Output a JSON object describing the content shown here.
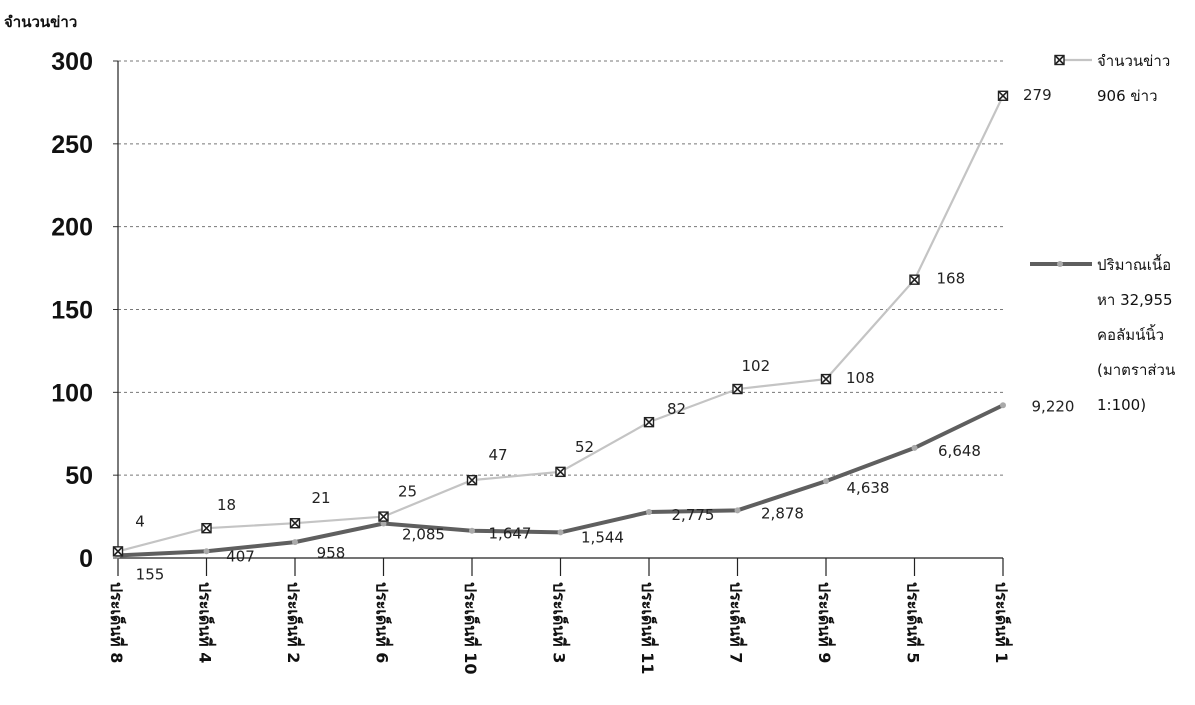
{
  "chart_data": {
    "type": "line",
    "ylabel": "จำนวนข่าว",
    "ylim": [
      0,
      300
    ],
    "yticks": [
      0,
      50,
      100,
      150,
      200,
      250,
      300
    ],
    "grid": "horizontal dashed",
    "legend_position": "right",
    "categories": [
      "ประเด็นที่ 8",
      "ประเด็นที่ 4",
      "ประเด็นที่ 2",
      "ประเด็นที่ 6",
      "ประเด็นที่ 10",
      "ประเด็นที่ 3",
      "ประเด็นที่ 11",
      "ประเด็นที่ 7",
      "ประเด็นที่ 9",
      "ประเด็นที่ 5",
      "ประเด็นที่ 1"
    ],
    "series": [
      {
        "name": "จำนวนข่าว 906 ข่าว",
        "legend_lines": [
          "จำนวนข่าว",
          "906 ข่าว"
        ],
        "values": [
          4,
          18,
          21,
          25,
          47,
          52,
          82,
          102,
          108,
          168,
          279
        ],
        "labels": [
          "4",
          "18",
          "21",
          "25",
          "47",
          "52",
          "82",
          "102",
          "108",
          "168",
          "279"
        ],
        "color": "#c4c4c4",
        "marker": "x-square"
      },
      {
        "name": "ปริมาณเนื้อหา 32,955 คอลัมน์นิ้ว (มาตราส่วน 1:100)",
        "legend_lines": [
          "ปริมาณเนื้อ",
          "หา 32,955",
          "คอลัมน์นิ้ว",
          "(มาตราส่วน",
          "1:100)"
        ],
        "values": [
          1.55,
          4.07,
          9.58,
          20.85,
          16.47,
          15.44,
          27.75,
          28.78,
          46.38,
          66.48,
          92.2
        ],
        "labels": [
          "155",
          "407",
          "958",
          "2,085",
          "1,647",
          "1,544",
          "2,775",
          "2,878",
          "4,638",
          "6,648",
          "9,220"
        ],
        "color": "#5f5f5f",
        "marker": "dot"
      }
    ]
  }
}
